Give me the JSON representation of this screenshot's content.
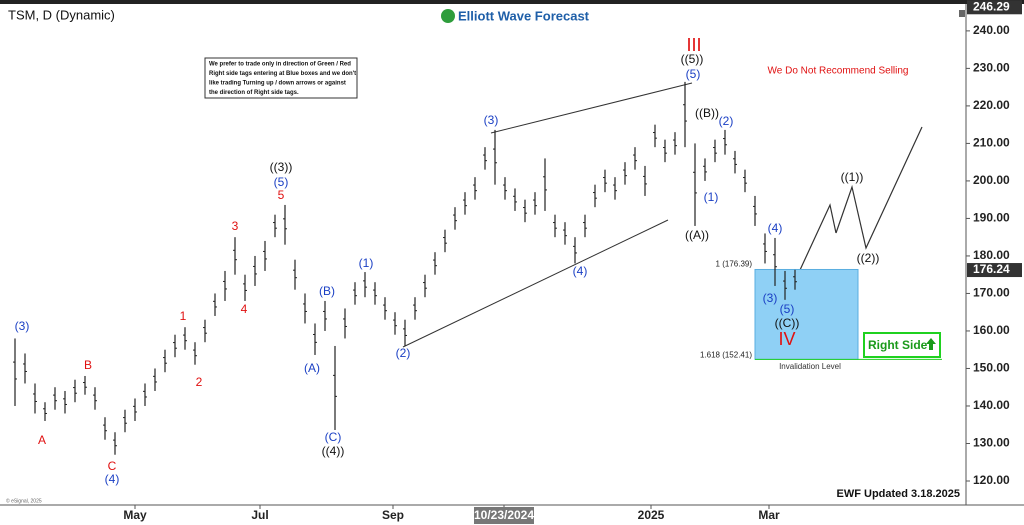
{
  "chart_data": {
    "type": "range_bar",
    "title": "TSM, D (Dynamic)",
    "brand": "Elliott Wave Forecast",
    "note": [
      "We prefer to trade only in direction of Green / Red",
      "Right side tags entering at Blue boxes and we don't",
      "like trading Turning up / down arrows or against",
      "the direction of Right side tags."
    ],
    "warning": "We Do Not Recommend Selling",
    "updated": "EWF Updated 3.18.2025",
    "source": "© eSignal, 2025",
    "right_side": "Right Side",
    "invalidation": "Invalidation Level",
    "color": "#222222",
    "high": [
      158,
      154,
      146,
      141,
      145,
      144,
      147,
      148,
      145,
      137,
      133,
      139,
      142,
      146,
      150,
      155,
      159,
      161,
      157,
      163,
      170,
      176,
      185,
      175,
      180,
      184,
      191,
      193.6,
      179,
      170,
      162,
      168,
      156,
      166,
      173,
      175.7,
      173,
      169,
      165,
      163,
      169,
      175,
      181,
      187,
      193,
      197,
      201,
      209,
      213.6,
      201,
      198,
      195,
      197,
      206,
      191,
      189,
      185,
      191,
      199,
      203,
      201,
      205,
      209,
      204,
      215,
      211,
      213,
      226.4,
      210,
      206,
      211,
      213.6,
      208,
      203,
      196,
      186,
      184.8,
      176,
      176.3
    ],
    "low": [
      140,
      146,
      138,
      136,
      139,
      138,
      141,
      143,
      139,
      131,
      127,
      133,
      136,
      140,
      144,
      149,
      153,
      155,
      151,
      157,
      164,
      168,
      175,
      168,
      172,
      176,
      185,
      183,
      171,
      162,
      153.6,
      160,
      133.6,
      158,
      167,
      169,
      167,
      163,
      159,
      156,
      163,
      169,
      175,
      181,
      187,
      191,
      195,
      203,
      199,
      195,
      192,
      189,
      191,
      192,
      185,
      183,
      178,
      185,
      193,
      197,
      195,
      199,
      203,
      196,
      209,
      205,
      207,
      209,
      188,
      200,
      205,
      207,
      202,
      197,
      188,
      178,
      172,
      168.3,
      171
    ],
    "xlim": [
      -1,
      95
    ],
    "xticks": [
      {
        "value": 12,
        "label": "May"
      },
      {
        "value": 24.5,
        "label": "Jul"
      },
      {
        "value": 37.8,
        "label": "Sep"
      },
      {
        "value": 48.9,
        "label": "10/23/2024"
      },
      {
        "value": 63.6,
        "label": "2025"
      },
      {
        "value": 75.4,
        "label": "Mar"
      }
    ],
    "ylim": [
      113.6,
      246.9
    ],
    "yticks": [
      {
        "value": 120,
        "label": "120.00"
      },
      {
        "value": 130,
        "label": "130.00"
      },
      {
        "value": 140,
        "label": "140.00"
      },
      {
        "value": 150,
        "label": "150.00"
      },
      {
        "value": 160,
        "label": "160.00"
      },
      {
        "value": 170,
        "label": "170.00"
      },
      {
        "value": 180,
        "label": "180.00"
      },
      {
        "value": 190,
        "label": "190.00"
      },
      {
        "value": 200,
        "label": "200.00"
      },
      {
        "value": 210,
        "label": "210.00"
      },
      {
        "value": 220,
        "label": "220.00"
      },
      {
        "value": 230,
        "label": "230.00"
      },
      {
        "value": 240,
        "label": "240.00"
      }
    ],
    "top_price": 246.29,
    "last_price": 176.24,
    "box_levels": [
      {
        "value": 176.39,
        "label": "1 (176.39)"
      },
      {
        "value": 152.41,
        "label": "1.618 (152.41)"
      }
    ],
    "box_color": "#8fd0f5",
    "annotations": [
      {
        "text": "(3)",
        "color": "#1a3fc4"
      },
      {
        "text": "A",
        "color": "#e01010"
      },
      {
        "text": "B",
        "color": "#e01010"
      },
      {
        "text": "C",
        "color": "#e01010"
      },
      {
        "text": "(4)",
        "color": "#1a3fc4"
      },
      {
        "text": "1",
        "color": "#e01010"
      },
      {
        "text": "2",
        "color": "#e01010"
      },
      {
        "text": "3",
        "color": "#e01010"
      },
      {
        "text": "4",
        "color": "#e01010"
      },
      {
        "text": "5",
        "color": "#e01010"
      },
      {
        "text": "(5)",
        "color": "#1a3fc4"
      },
      {
        "text": "((3))",
        "color": "#111111"
      },
      {
        "text": "(A)",
        "color": "#1a3fc4"
      },
      {
        "text": "(B)",
        "color": "#1a3fc4"
      },
      {
        "text": "(C)",
        "color": "#1a3fc4"
      },
      {
        "text": "((4))",
        "color": "#111111"
      },
      {
        "text": "(1)",
        "color": "#1a3fc4"
      },
      {
        "text": "(2)",
        "color": "#1a3fc4"
      },
      {
        "text": "(3)",
        "color": "#1a3fc4"
      },
      {
        "text": "(4)",
        "color": "#1a3fc4"
      },
      {
        "text": "(5)",
        "color": "#1a3fc4"
      },
      {
        "text": "((5))",
        "color": "#111111"
      },
      {
        "text": "III",
        "color": "#e01010"
      },
      {
        "text": "((B))",
        "color": "#111111"
      },
      {
        "text": "(2)",
        "color": "#1a3fc4"
      },
      {
        "text": "(1)",
        "color": "#1a3fc4"
      },
      {
        "text": "((A))",
        "color": "#111111"
      },
      {
        "text": "(4)",
        "color": "#1a3fc4"
      },
      {
        "text": "(3)",
        "color": "#1a3fc4"
      },
      {
        "text": "(5)",
        "color": "#1a3fc4"
      },
      {
        "text": "((C))",
        "color": "#111111"
      },
      {
        "text": "IV",
        "color": "#e01010"
      },
      {
        "text": "((1))",
        "color": "#111111"
      },
      {
        "text": "((2))",
        "color": "#111111"
      }
    ]
  }
}
